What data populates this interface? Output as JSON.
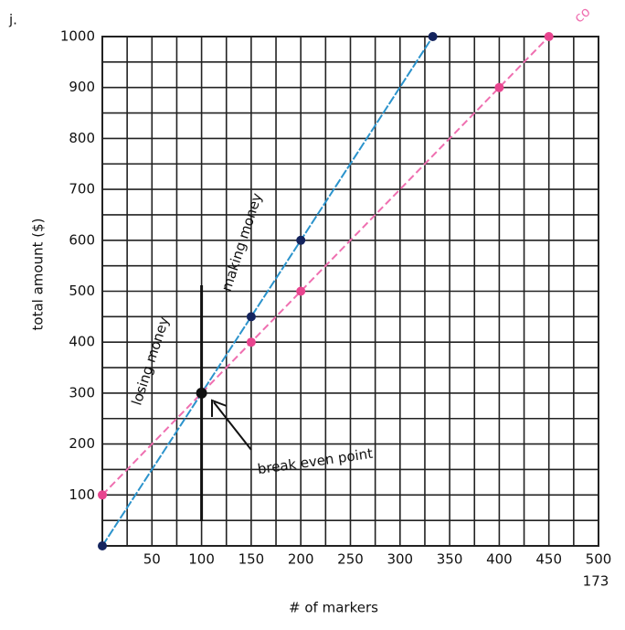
{
  "header": {
    "label": "j."
  },
  "page_number": "173",
  "chart_data": {
    "type": "line",
    "x_label": "# of markers",
    "y_label": "total amount ($)",
    "xlim": [
      0,
      500
    ],
    "ylim": [
      0,
      1000
    ],
    "xticks": [
      50,
      100,
      150,
      200,
      250,
      300,
      350,
      400,
      450,
      500
    ],
    "yticks": [
      100,
      200,
      300,
      400,
      500,
      600,
      700,
      800,
      900,
      1000
    ],
    "grid": true,
    "series": [
      {
        "color": "#2b93cc",
        "marker_color": "#14245e",
        "x": [
          0,
          150,
          200,
          333
        ],
        "values": [
          0,
          450,
          600,
          1000
        ]
      },
      {
        "name": "co",
        "color": "#ef6fb0",
        "marker_color": "#e8458f",
        "x": [
          0,
          150,
          200,
          400,
          450
        ],
        "values": [
          100,
          400,
          500,
          900,
          1000
        ]
      }
    ],
    "annotations": [
      {
        "text": "losing money"
      },
      {
        "text": "making money"
      },
      {
        "text": "break even point",
        "x": 100,
        "y": 300
      }
    ]
  }
}
